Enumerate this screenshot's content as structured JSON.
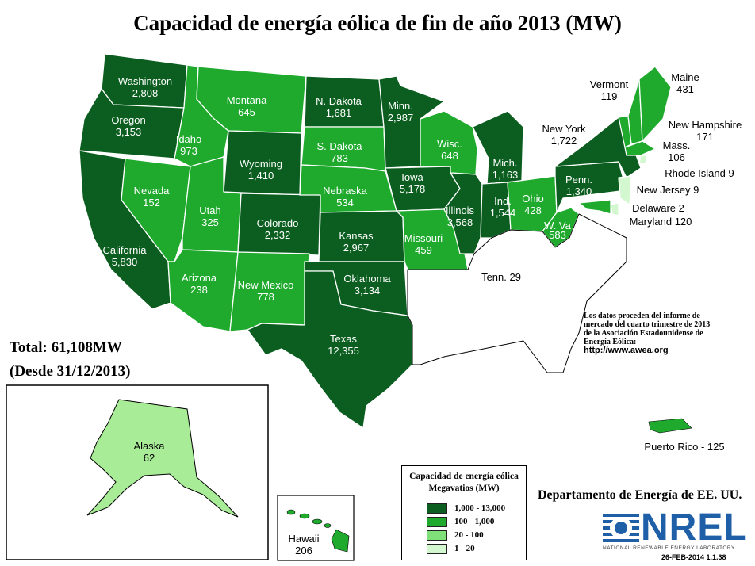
{
  "title": "Capacidad de energía eólica de fin de año 2013 (MW)",
  "total_line1": "Total: 61,108MW",
  "total_line2": "(Desde 31/12/2013)",
  "source_note": {
    "line1": "Los datos proceden del informe de",
    "line2": "mercado del cuarto trimestre de 2013",
    "line3": "de la Asociación Estadounidense de",
    "line4": "Energía Eólica:",
    "url": "http://www.awea.org"
  },
  "department": "Departamento de Energía de EE. UU.",
  "logo": {
    "text": "NREL",
    "subtitle": "NATIONAL RENEWABLE ENERGY LABORATORY",
    "date": "26-FEB-2014 1.1.38"
  },
  "legend": {
    "title1": "Capacidad de energía eólica",
    "title2": "Megavatios (MW)",
    "classes": [
      {
        "label": "1,000 - 13,000",
        "color": "#0b5e1f"
      },
      {
        "label": "100 - 1,000",
        "color": "#1faa2e"
      },
      {
        "label": "20 - 100",
        "color": "#7fe07a"
      },
      {
        "label": "1 - 20",
        "color": "#d3f7cf"
      }
    ]
  },
  "no_data_color": "#ffffff",
  "states": {
    "washington": {
      "name": "Washington",
      "value": "2,808"
    },
    "oregon": {
      "name": "Oregon",
      "value": "3,153"
    },
    "california": {
      "name": "California",
      "value": "5,830"
    },
    "nevada": {
      "name": "Nevada",
      "value": "152"
    },
    "idaho": {
      "name": "Idaho",
      "value": "973"
    },
    "montana": {
      "name": "Montana",
      "value": "645"
    },
    "wyoming": {
      "name": "Wyoming",
      "value": "1,410"
    },
    "utah": {
      "name": "Utah",
      "value": "325"
    },
    "arizona": {
      "name": "Arizona",
      "value": "238"
    },
    "colorado": {
      "name": "Colorado",
      "value": "2,332"
    },
    "new_mexico": {
      "name": "New Mexico",
      "value": "778"
    },
    "north_dakota": {
      "name": "N. Dakota",
      "value": "1,681"
    },
    "south_dakota": {
      "name": "S. Dakota",
      "value": "783"
    },
    "nebraska": {
      "name": "Nebraska",
      "value": "534"
    },
    "kansas": {
      "name": "Kansas",
      "value": "2,967"
    },
    "oklahoma": {
      "name": "Oklahoma",
      "value": "3,134"
    },
    "texas": {
      "name": "Texas",
      "value": "12,355"
    },
    "minnesota": {
      "name": "Minn.",
      "value": "2,987"
    },
    "iowa": {
      "name": "Iowa",
      "value": "5,178"
    },
    "missouri": {
      "name": "Missouri",
      "value": "459"
    },
    "wisconsin": {
      "name": "Wisc.",
      "value": "648"
    },
    "illinois": {
      "name": "Illinois",
      "value": "3,568"
    },
    "michigan": {
      "name": "Mich.",
      "value": "1,163"
    },
    "indiana": {
      "name": "Ind.",
      "value": "1,544"
    },
    "ohio": {
      "name": "Ohio",
      "value": "428"
    },
    "west_virginia": {
      "name": "W. Va",
      "value": "583"
    },
    "tennessee": {
      "name": "Tenn.",
      "value": "29"
    },
    "pennsylvania": {
      "name": "Penn.",
      "value": "1,340"
    },
    "new_york": {
      "name": "New York",
      "value": "1,722"
    },
    "vermont": {
      "name": "Vermont",
      "value": "119"
    },
    "maine": {
      "name": "Maine",
      "value": "431"
    },
    "new_hampshire": {
      "name": "New Hampshire",
      "value": "171"
    },
    "massachusetts": {
      "name": "Mass.",
      "value": "106"
    },
    "rhode_island": {
      "name": "Rhode Island",
      "value": "9"
    },
    "new_jersey": {
      "name": "New Jersey",
      "value": "9"
    },
    "delaware": {
      "name": "Delaware",
      "value": "2"
    },
    "maryland": {
      "name": "Maryland",
      "value": "120"
    },
    "alaska": {
      "name": "Alaska",
      "value": "62"
    },
    "hawaii": {
      "name": "Hawaii",
      "value": "206"
    },
    "puerto_rico": {
      "name": "Puerto Rico",
      "value": "125"
    }
  }
}
